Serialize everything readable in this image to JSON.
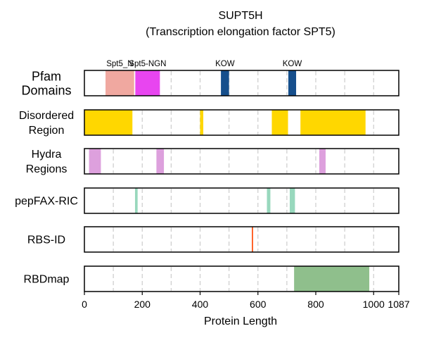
{
  "chart_data": {
    "type": "bar",
    "title": "SUPT5H",
    "subtitle": "(Transcription elongation factor SPT5)",
    "xlabel": "Protein Length",
    "xlim": [
      0,
      1087
    ],
    "xticks": [
      0,
      200,
      400,
      600,
      800,
      1000,
      1087
    ],
    "xtick_labels": [
      "0",
      "200",
      "400",
      "600",
      "800",
      "1000",
      "1087"
    ],
    "grid": {
      "vertical_dashed": [
        100,
        200,
        300,
        400,
        500,
        600,
        700,
        800,
        900,
        1000
      ]
    },
    "tracks": [
      {
        "label": [
          "Pfam",
          "Domains"
        ],
        "segments": [
          {
            "start": 73,
            "end": 172,
            "color": "#f0a8a0",
            "label": "Spt5_N"
          },
          {
            "start": 176,
            "end": 261,
            "color": "#e845f0",
            "label": "Spt5-NGN"
          },
          {
            "start": 472,
            "end": 500,
            "color": "#164f8c",
            "label": "KOW"
          },
          {
            "start": 705,
            "end": 732,
            "color": "#164f8c",
            "label": "KOW"
          }
        ]
      },
      {
        "label": [
          "Disordered",
          "Region"
        ],
        "segments": [
          {
            "start": 0,
            "end": 166,
            "color": "#ffd700"
          },
          {
            "start": 400,
            "end": 411,
            "color": "#ffd700"
          },
          {
            "start": 648,
            "end": 704,
            "color": "#ffd700"
          },
          {
            "start": 747,
            "end": 972,
            "color": "#ffd700"
          }
        ]
      },
      {
        "label": [
          "Hydra",
          "Regions"
        ],
        "segments": [
          {
            "start": 16,
            "end": 57,
            "color": "#dda0dd"
          },
          {
            "start": 249,
            "end": 275,
            "color": "#dda0dd"
          },
          {
            "start": 812,
            "end": 834,
            "color": "#dda0dd"
          }
        ]
      },
      {
        "label": [
          "pepFAX-RIC"
        ],
        "segments": [
          {
            "start": 175,
            "end": 184,
            "color": "#98d8bd"
          },
          {
            "start": 631,
            "end": 643,
            "color": "#98d8bd"
          },
          {
            "start": 710,
            "end": 728,
            "color": "#98d8bd"
          }
        ]
      },
      {
        "label": [
          "RBS-ID"
        ],
        "segments": [
          {
            "start": 579,
            "end": 583,
            "color": "#ff4500"
          }
        ]
      },
      {
        "label": [
          "RBDmap"
        ],
        "segments": [
          {
            "start": 725,
            "end": 985,
            "color": "#8fbf8c"
          }
        ]
      }
    ]
  }
}
